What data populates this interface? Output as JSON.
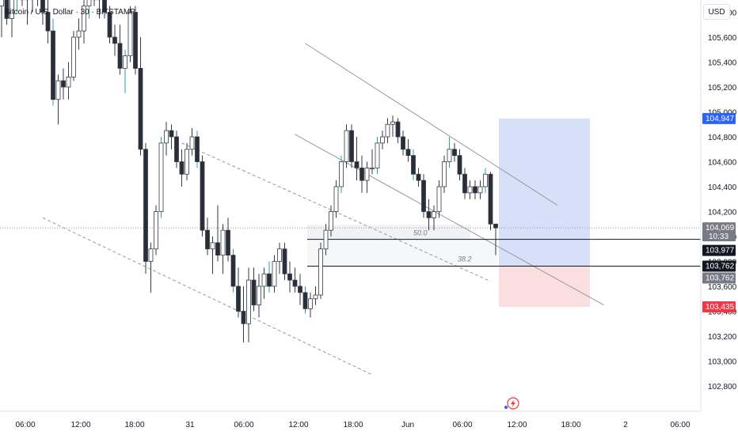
{
  "header": {
    "symbol_title": "Bitcoin / U.S. Dollar · 30 · BITSTAMP",
    "currency_label": "USD"
  },
  "colors": {
    "up": "#ffffff",
    "down": "#2a2e39",
    "wick": "#363a45",
    "teal_wick": "#26a69a",
    "target_zone": "#cfdcf8",
    "stop_zone": "#f9dadd",
    "blue_tag": "#2962ff",
    "red_tag": "#f23645",
    "gray_tag": "#787b86",
    "black_tag": "#131722"
  },
  "chart_data": {
    "type": "candlestick",
    "symbol": "Bitcoin / U.S. Dollar",
    "interval": "30",
    "exchange": "BITSTAMP",
    "y_axis": {
      "unit": "USD",
      "range": [
        102700,
        106100
      ],
      "ticks": [
        "105,800",
        "105,600",
        "105,400",
        "105,200",
        "105,000",
        "104,800",
        "104,600",
        "104,400",
        "104,200",
        "104,000",
        "103,800",
        "103,600",
        "103,400",
        "103,200",
        "103,000",
        "102,800"
      ]
    },
    "x_axis": {
      "ticks": [
        "06:00",
        "12:00",
        "18:00",
        "31",
        "06:00",
        "12:00",
        "18:00",
        "Jun",
        "06:00",
        "12:00",
        "18:00",
        "2",
        "06:00"
      ]
    },
    "price_tags": [
      {
        "label": "104,947",
        "value": 104947,
        "style": "blue"
      },
      {
        "label": "104,069",
        "value": 104069,
        "style": "gray",
        "sub": "10:33"
      },
      {
        "label": "103,977",
        "value": 103977,
        "style": "black"
      },
      {
        "label": "103,762",
        "value": 103762,
        "style": "black"
      },
      {
        "label": "103,762",
        "value": 103762,
        "style": "gray"
      },
      {
        "label": "103,435",
        "value": 103435,
        "style": "red"
      }
    ],
    "fib_labels": [
      {
        "label": "50.0",
        "value": 103977
      },
      {
        "label": "38.2",
        "value": 103762
      }
    ],
    "position": {
      "target": 104947,
      "entry": 103762,
      "stop": 103435
    },
    "candles": [
      {
        "o": 105850,
        "h": 106100,
        "l": 105600,
        "c": 106000
      },
      {
        "o": 106000,
        "h": 106150,
        "l": 105700,
        "c": 105750
      },
      {
        "o": 105750,
        "h": 106050,
        "l": 105600,
        "c": 105950
      },
      {
        "o": 105950,
        "h": 106100,
        "l": 105800,
        "c": 106050
      },
      {
        "o": 106050,
        "h": 106120,
        "l": 105850,
        "c": 105900
      },
      {
        "o": 105900,
        "h": 106050,
        "l": 105700,
        "c": 105950
      },
      {
        "o": 105950,
        "h": 106050,
        "l": 105800,
        "c": 106000
      },
      {
        "o": 106000,
        "h": 106100,
        "l": 105850,
        "c": 105950
      },
      {
        "o": 105950,
        "h": 106050,
        "l": 105700,
        "c": 105800
      },
      {
        "o": 105800,
        "h": 105900,
        "l": 105550,
        "c": 105650
      },
      {
        "o": 105650,
        "h": 105750,
        "l": 105050,
        "c": 105100
      },
      {
        "o": 105100,
        "h": 105300,
        "l": 104900,
        "c": 105250
      },
      {
        "o": 105250,
        "h": 105350,
        "l": 105100,
        "c": 105200
      },
      {
        "o": 105200,
        "h": 105400,
        "l": 105100,
        "c": 105280
      },
      {
        "o": 105280,
        "h": 105650,
        "l": 105250,
        "c": 105600
      },
      {
        "o": 105600,
        "h": 105750,
        "l": 105500,
        "c": 105650
      },
      {
        "o": 105650,
        "h": 105900,
        "l": 105550,
        "c": 105850
      },
      {
        "o": 105850,
        "h": 106050,
        "l": 105750,
        "c": 106000
      },
      {
        "o": 106000,
        "h": 106100,
        "l": 105850,
        "c": 105900
      },
      {
        "o": 105900,
        "h": 106000,
        "l": 105750,
        "c": 105950
      },
      {
        "o": 105950,
        "h": 106000,
        "l": 105750,
        "c": 105800
      },
      {
        "o": 105800,
        "h": 105850,
        "l": 105550,
        "c": 105600
      },
      {
        "o": 105600,
        "h": 105700,
        "l": 105450,
        "c": 105550
      },
      {
        "o": 105550,
        "h": 105700,
        "l": 105300,
        "c": 105350
      },
      {
        "o": 105350,
        "h": 105500,
        "l": 105150,
        "c": 105450
      },
      {
        "o": 105450,
        "h": 105850,
        "l": 105400,
        "c": 105800
      },
      {
        "o": 105800,
        "h": 105850,
        "l": 105300,
        "c": 105350
      },
      {
        "o": 105350,
        "h": 105600,
        "l": 104650,
        "c": 104700
      },
      {
        "o": 104700,
        "h": 104750,
        "l": 103700,
        "c": 103800
      },
      {
        "o": 103800,
        "h": 103950,
        "l": 103550,
        "c": 103900
      },
      {
        "o": 103900,
        "h": 104250,
        "l": 103850,
        "c": 104200
      },
      {
        "o": 104200,
        "h": 104800,
        "l": 104150,
        "c": 104750
      },
      {
        "o": 104750,
        "h": 104920,
        "l": 104650,
        "c": 104850
      },
      {
        "o": 104850,
        "h": 104900,
        "l": 104700,
        "c": 104800
      },
      {
        "o": 104800,
        "h": 104850,
        "l": 104550,
        "c": 104600
      },
      {
        "o": 104600,
        "h": 104700,
        "l": 104400,
        "c": 104500
      },
      {
        "o": 104500,
        "h": 104750,
        "l": 104450,
        "c": 104700
      },
      {
        "o": 104700,
        "h": 104870,
        "l": 104650,
        "c": 104800
      },
      {
        "o": 104800,
        "h": 104850,
        "l": 104550,
        "c": 104600
      },
      {
        "o": 104600,
        "h": 104650,
        "l": 104000,
        "c": 104050
      },
      {
        "o": 104050,
        "h": 104150,
        "l": 103850,
        "c": 103900
      },
      {
        "o": 103900,
        "h": 104000,
        "l": 103700,
        "c": 103950
      },
      {
        "o": 103950,
        "h": 104250,
        "l": 103800,
        "c": 103850
      },
      {
        "o": 103850,
        "h": 104100,
        "l": 103700,
        "c": 104050
      },
      {
        "o": 104050,
        "h": 104150,
        "l": 103800,
        "c": 103850
      },
      {
        "o": 103850,
        "h": 103900,
        "l": 103550,
        "c": 103600
      },
      {
        "o": 103600,
        "h": 103750,
        "l": 103350,
        "c": 103400
      },
      {
        "o": 103400,
        "h": 103600,
        "l": 103150,
        "c": 103300
      },
      {
        "o": 103300,
        "h": 103750,
        "l": 103150,
        "c": 103650
      },
      {
        "o": 103650,
        "h": 103750,
        "l": 103400,
        "c": 103450
      },
      {
        "o": 103450,
        "h": 103700,
        "l": 103350,
        "c": 103600
      },
      {
        "o": 103600,
        "h": 103750,
        "l": 103500,
        "c": 103700
      },
      {
        "o": 103700,
        "h": 103800,
        "l": 103550,
        "c": 103600
      },
      {
        "o": 103600,
        "h": 103850,
        "l": 103550,
        "c": 103800
      },
      {
        "o": 103800,
        "h": 103950,
        "l": 103700,
        "c": 103900
      },
      {
        "o": 103900,
        "h": 103950,
        "l": 103650,
        "c": 103700
      },
      {
        "o": 103700,
        "h": 103800,
        "l": 103550,
        "c": 103650
      },
      {
        "o": 103650,
        "h": 103750,
        "l": 103550,
        "c": 103600
      },
      {
        "o": 103600,
        "h": 103700,
        "l": 103450,
        "c": 103550
      },
      {
        "o": 103550,
        "h": 103600,
        "l": 103380,
        "c": 103420
      },
      {
        "o": 103420,
        "h": 103550,
        "l": 103350,
        "c": 103500
      },
      {
        "o": 103500,
        "h": 103600,
        "l": 103450,
        "c": 103530
      },
      {
        "o": 103530,
        "h": 103950,
        "l": 103500,
        "c": 103900
      },
      {
        "o": 103900,
        "h": 104100,
        "l": 103850,
        "c": 104050
      },
      {
        "o": 104050,
        "h": 104250,
        "l": 104000,
        "c": 104200
      },
      {
        "o": 104200,
        "h": 104450,
        "l": 104150,
        "c": 104400
      },
      {
        "o": 104400,
        "h": 104650,
        "l": 104350,
        "c": 104600
      },
      {
        "o": 104600,
        "h": 104900,
        "l": 104550,
        "c": 104850
      },
      {
        "o": 104850,
        "h": 104900,
        "l": 104550,
        "c": 104600
      },
      {
        "o": 104600,
        "h": 104800,
        "l": 104450,
        "c": 104550
      },
      {
        "o": 104550,
        "h": 104650,
        "l": 104350,
        "c": 104450
      },
      {
        "o": 104450,
        "h": 104600,
        "l": 104350,
        "c": 104550
      },
      {
        "o": 104550,
        "h": 104700,
        "l": 104500,
        "c": 104550
      },
      {
        "o": 104550,
        "h": 104800,
        "l": 104500,
        "c": 104750
      },
      {
        "o": 104750,
        "h": 104850,
        "l": 104700,
        "c": 104800
      },
      {
        "o": 104800,
        "h": 104950,
        "l": 104750,
        "c": 104900
      },
      {
        "o": 104900,
        "h": 104970,
        "l": 104800,
        "c": 104920
      },
      {
        "o": 104920,
        "h": 104950,
        "l": 104750,
        "c": 104800
      },
      {
        "o": 104800,
        "h": 104850,
        "l": 104650,
        "c": 104700
      },
      {
        "o": 104700,
        "h": 104780,
        "l": 104600,
        "c": 104650
      },
      {
        "o": 104650,
        "h": 104700,
        "l": 104450,
        "c": 104500
      },
      {
        "o": 104500,
        "h": 104550,
        "l": 104400,
        "c": 104450
      },
      {
        "o": 104450,
        "h": 104500,
        "l": 104150,
        "c": 104200
      },
      {
        "o": 104200,
        "h": 104300,
        "l": 104050,
        "c": 104150
      },
      {
        "o": 104150,
        "h": 104250,
        "l": 104050,
        "c": 104200
      },
      {
        "o": 104200,
        "h": 104450,
        "l": 104150,
        "c": 104400
      },
      {
        "o": 104400,
        "h": 104650,
        "l": 104350,
        "c": 104600
      },
      {
        "o": 104600,
        "h": 104800,
        "l": 104550,
        "c": 104700
      },
      {
        "o": 104700,
        "h": 104750,
        "l": 104600,
        "c": 104650
      },
      {
        "o": 104650,
        "h": 104700,
        "l": 104450,
        "c": 104500
      },
      {
        "o": 104500,
        "h": 104550,
        "l": 104300,
        "c": 104350
      },
      {
        "o": 104350,
        "h": 104450,
        "l": 104300,
        "c": 104400
      },
      {
        "o": 104400,
        "h": 104450,
        "l": 104300,
        "c": 104350
      },
      {
        "o": 104350,
        "h": 104450,
        "l": 104300,
        "c": 104400
      },
      {
        "o": 104400,
        "h": 104550,
        "l": 104350,
        "c": 104500
      },
      {
        "o": 104500,
        "h": 104520,
        "l": 104050,
        "c": 104100
      },
      {
        "o": 104100,
        "h": 104100,
        "l": 103850,
        "c": 104069
      }
    ],
    "channels": [
      {
        "style": "solid",
        "from": {
          "i": 59,
          "v": 105550
        },
        "to": {
          "i": 108,
          "v": 104250
        }
      },
      {
        "style": "solid",
        "from": {
          "i": 57,
          "v": 104820
        },
        "to": {
          "i": 117,
          "v": 103450
        }
      },
      {
        "style": "dashed",
        "from": {
          "i": 35,
          "v": 104750
        },
        "to": {
          "i": 95,
          "v": 103640
        }
      },
      {
        "style": "dashed",
        "from": {
          "i": 8,
          "v": 104150
        },
        "to": {
          "i": 72,
          "v": 102890
        }
      }
    ]
  }
}
